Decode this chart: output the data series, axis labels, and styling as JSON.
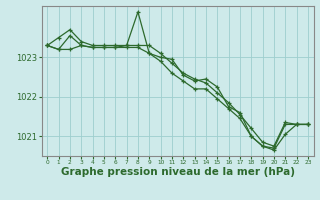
{
  "title": "Graphe pression niveau de la mer (hPa)",
  "x_labels": [
    "0",
    "1",
    "2",
    "3",
    "4",
    "5",
    "6",
    "7",
    "8",
    "9",
    "10",
    "11",
    "12",
    "13",
    "14",
    "15",
    "16",
    "17",
    "18",
    "19",
    "20",
    "21",
    "22",
    "23"
  ],
  "hours": [
    0,
    1,
    2,
    3,
    4,
    5,
    6,
    7,
    8,
    9,
    10,
    11,
    12,
    13,
    14,
    15,
    16,
    17,
    18,
    19,
    20,
    21,
    22,
    23
  ],
  "line1": [
    1023.3,
    1023.5,
    1023.7,
    1023.4,
    1023.3,
    1023.3,
    1023.3,
    1023.3,
    1023.3,
    1023.3,
    1023.1,
    1022.85,
    1022.6,
    1022.45,
    1022.35,
    1022.1,
    1021.85,
    1021.55,
    1021.2,
    1020.85,
    1020.75,
    1021.35,
    1021.3,
    1021.3
  ],
  "line2": [
    1023.3,
    1023.2,
    1023.55,
    1023.3,
    1023.25,
    1023.25,
    1023.25,
    1023.3,
    1024.15,
    1023.1,
    1023.0,
    1022.95,
    1022.55,
    1022.4,
    1022.45,
    1022.25,
    1021.75,
    1021.6,
    1021.0,
    1020.75,
    1020.7,
    1021.3,
    1021.3,
    1021.3
  ],
  "line3": [
    1023.3,
    1023.2,
    1023.2,
    1023.3,
    1023.25,
    1023.25,
    1023.25,
    1023.25,
    1023.25,
    1023.1,
    1022.9,
    1022.6,
    1022.4,
    1022.2,
    1022.2,
    1021.95,
    1021.7,
    1021.45,
    1021.0,
    1020.75,
    1020.65,
    1021.05,
    1021.3,
    1021.3
  ],
  "line_color": "#2d6a2d",
  "bg_color": "#ceeaea",
  "grid_color": "#9ecece",
  "ylim": [
    1020.5,
    1024.3
  ],
  "yticks": [
    1021,
    1022,
    1023
  ],
  "title_fontsize": 7.5,
  "axis_color": "#888888"
}
